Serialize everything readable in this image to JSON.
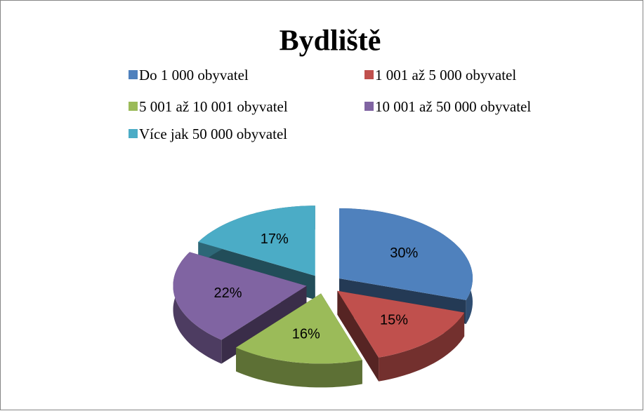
{
  "chart_data": {
    "type": "pie",
    "title": "Bydliště",
    "categories": [
      "Do 1 000 obyvatel",
      "1 001 až 5 000 obyvatel",
      "5 001 až 10 001 obyvatel",
      "10 001 až 50 000 obyvatel",
      "Více jak 50 000 obyvatel"
    ],
    "values": [
      30,
      15,
      16,
      22,
      17
    ],
    "value_labels": [
      "30%",
      "15%",
      "16%",
      "22%",
      "17%"
    ],
    "colors": [
      "#4f81bd",
      "#c0504d",
      "#9bbb59",
      "#8064a2",
      "#4bacc6"
    ],
    "legend": "top"
  }
}
